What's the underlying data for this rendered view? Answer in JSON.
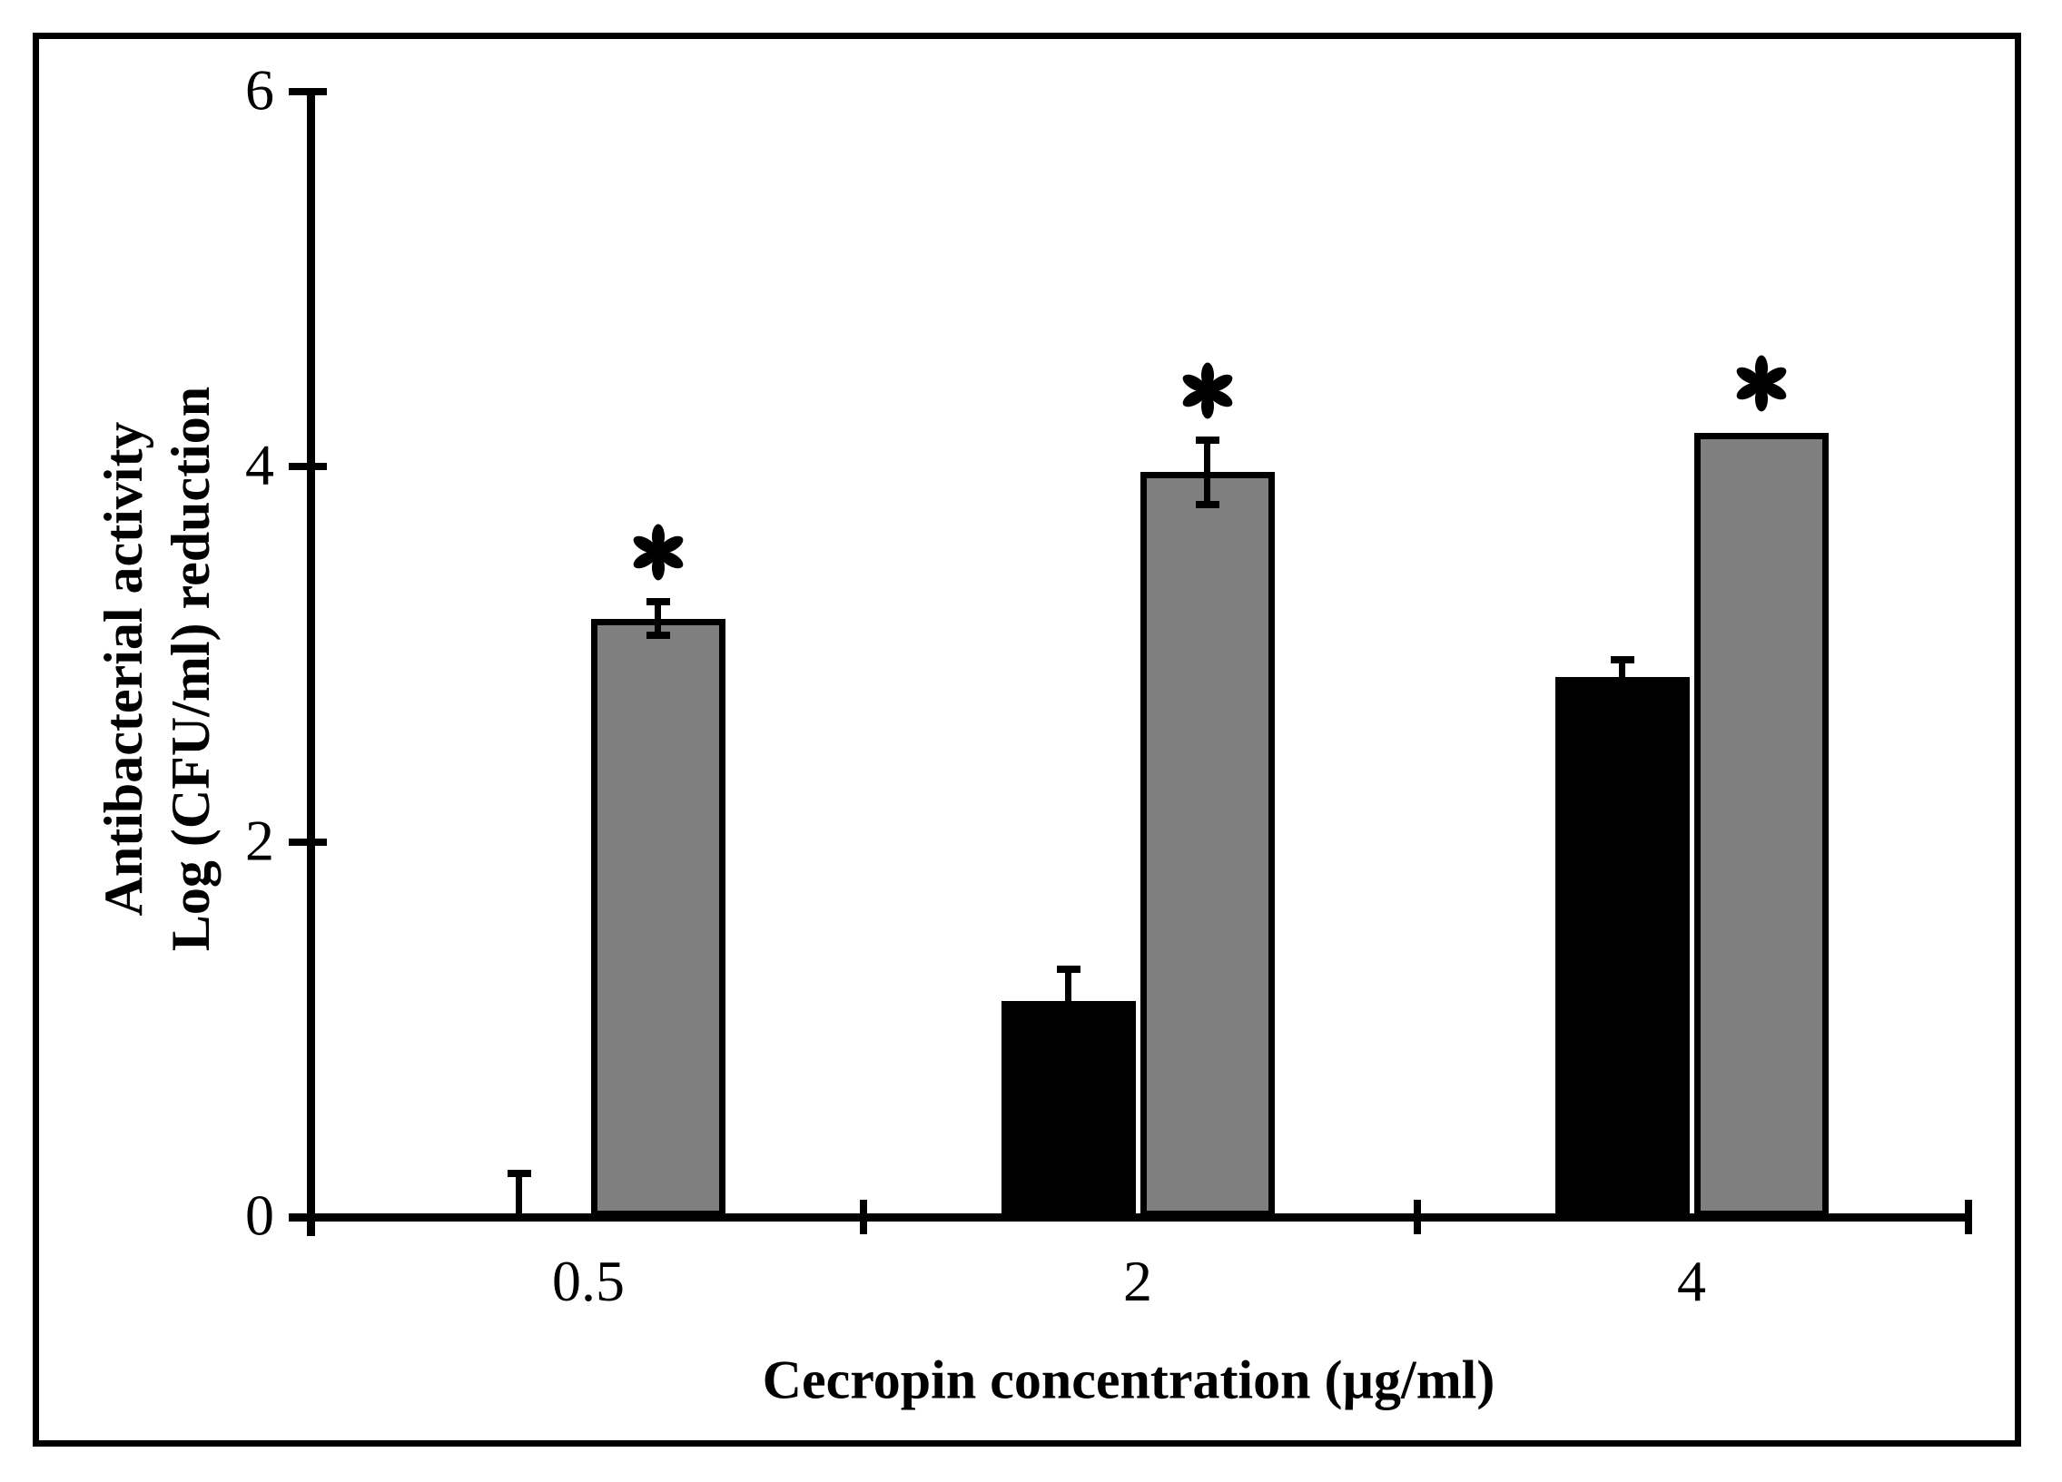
{
  "figure": {
    "background": "#ffffff",
    "border_color": "#000000",
    "bar_outline_color": "#000000"
  },
  "chart_data": {
    "type": "bar",
    "title": "",
    "xlabel": "Cecropin concentration (µg/ml)",
    "ylabel_line1": "Antibacterial activity",
    "ylabel_line2": "Log (CFU/ml) reduction",
    "categories": [
      "0.5",
      "2",
      "4"
    ],
    "series": [
      {
        "name": "black-bars",
        "color": "#000000",
        "values": [
          0.02,
          1.15,
          2.88
        ],
        "errors": [
          0.21,
          0.17,
          0.09
        ],
        "error_caps": [
          "top",
          "top",
          "top"
        ],
        "significance": [
          "",
          "",
          ""
        ]
      },
      {
        "name": "gray-bars",
        "color": "#7f7f7f",
        "values": [
          3.19,
          3.97,
          4.18
        ],
        "errors": [
          0.09,
          0.17,
          0
        ],
        "error_caps": [
          "both",
          "both",
          "none"
        ],
        "significance": [
          "*",
          "*",
          "*"
        ]
      }
    ],
    "y_ticks": [
      6,
      4,
      2,
      0
    ],
    "y_tick_labels": [
      "6",
      "4",
      "2",
      "0"
    ],
    "ylim": [
      0,
      6
    ],
    "grid": false,
    "legend": "none",
    "significance_symbol": "*"
  }
}
